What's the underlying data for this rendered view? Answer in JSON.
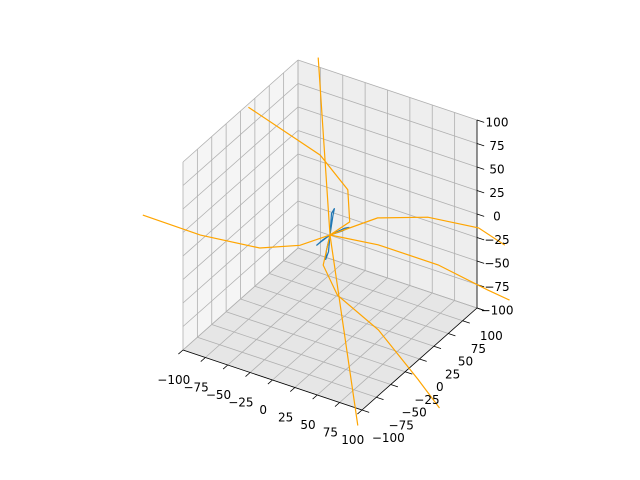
{
  "chart_data": {
    "type": "line3d",
    "xlim": [
      -100,
      100
    ],
    "ylim": [
      -100,
      100
    ],
    "zlim": [
      -100,
      100
    ],
    "xticks": [
      {
        "value": -100,
        "label": "−100"
      },
      {
        "value": -75,
        "label": "−75"
      },
      {
        "value": -50,
        "label": "−50"
      },
      {
        "value": -25,
        "label": "−25"
      },
      0,
      25,
      50,
      75,
      100
    ],
    "yticks": [
      {
        "value": -100,
        "label": "−100"
      },
      {
        "value": -75,
        "label": "−75"
      },
      {
        "value": -50,
        "label": "−50"
      },
      {
        "value": -25,
        "label": "−25"
      },
      0,
      25,
      50,
      75,
      100
    ],
    "zticks": [
      {
        "value": -100,
        "label": "−100"
      },
      {
        "value": -75,
        "label": "−75"
      },
      {
        "value": -50,
        "label": "−50"
      },
      {
        "value": -25,
        "label": "−25"
      },
      0,
      25,
      50,
      75,
      100
    ],
    "grid": true,
    "series": [
      {
        "color": "#1f77b4",
        "x": [
          0,
          3,
          5,
          2,
          0,
          -3,
          -5,
          -2,
          0,
          10,
          14,
          8,
          0,
          -8,
          -10,
          -4,
          0
        ],
        "y": [
          0,
          -2,
          0,
          2,
          0,
          2,
          0,
          -3,
          0,
          10,
          12,
          9,
          0,
          -4,
          -8,
          -6,
          0
        ],
        "z": [
          0,
          25,
          30,
          20,
          0,
          -20,
          -28,
          -15,
          0,
          5,
          6,
          2,
          0,
          -8,
          -10,
          -3,
          0
        ]
      },
      {
        "color": "#ffa500",
        "x": [
          -170,
          -105,
          -45,
          -15,
          0,
          4,
          -27,
          -81,
          -183,
          null,
          -17,
          0,
          42,
          null,
          0,
          23,
          63,
          114,
          151,
          null,
          0,
          48,
          115,
          178,
          205,
          null,
          0,
          22,
          61,
          126,
          204,
          247
        ],
        "y": [
          -61,
          -62,
          -52,
          -29,
          0,
          28,
          73,
          109,
          143,
          null,
          6,
          0,
          -17,
          null,
          0,
          47,
          72,
          81,
          69,
          null,
          0,
          9,
          9,
          -3,
          -7,
          null,
          0,
          -46,
          -82,
          -112,
          -164,
          -194
        ],
        "z": [
          0,
          0,
          0,
          0,
          0,
          0,
          0,
          0,
          0,
          null,
          180,
          0,
          -180,
          null,
          0,
          0,
          0,
          0,
          0,
          null,
          0,
          0,
          0,
          0,
          0,
          null,
          0,
          0,
          0,
          0,
          0,
          0
        ]
      }
    ]
  }
}
